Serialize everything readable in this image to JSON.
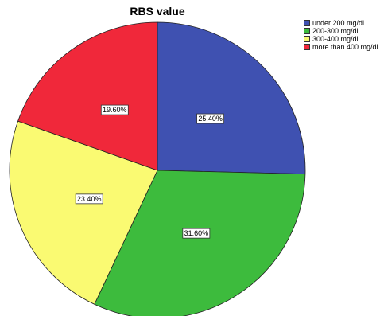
{
  "chart_data": {
    "type": "pie",
    "title": "RBS value",
    "legend_position": "top-right",
    "slices": [
      {
        "label": "under 200 mg/dl",
        "value": 25.4,
        "display": "25.40%",
        "color": "#3f51b1"
      },
      {
        "label": "200-300 mg/dl",
        "value": 31.6,
        "display": "31.60%",
        "color": "#3dbb3d"
      },
      {
        "label": "300-400 mg/dl",
        "value": 23.4,
        "display": "23.40%",
        "color": "#fafa72"
      },
      {
        "label": "more than 400 mg/dl",
        "value": 19.6,
        "display": "19.60%",
        "color": "#f0283a"
      }
    ]
  }
}
